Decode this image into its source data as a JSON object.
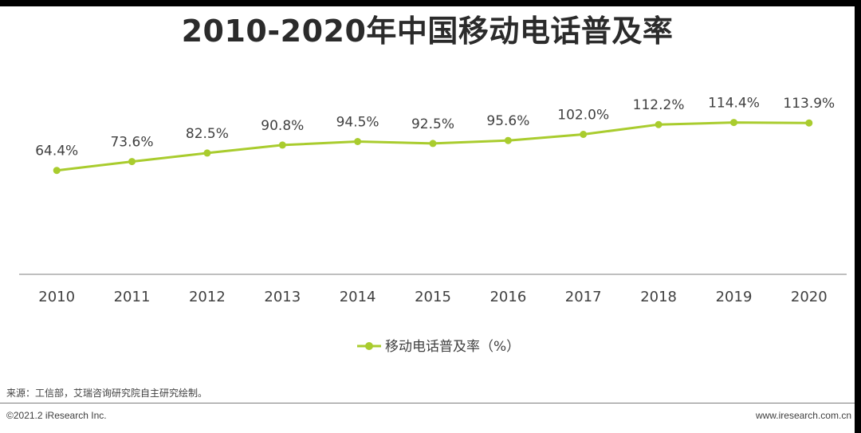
{
  "colors": {
    "series": "#a9cc2e",
    "axis": "#7f7f7f",
    "text": "#404040"
  },
  "chart_data": {
    "type": "line",
    "title": "2010-2020年中国移动电话普及率",
    "categories": [
      "2010",
      "2011",
      "2012",
      "2013",
      "2014",
      "2015",
      "2016",
      "2017",
      "2018",
      "2019",
      "2020"
    ],
    "series": [
      {
        "name": "移动电话普及率（%）",
        "values": [
          64.4,
          73.6,
          82.5,
          90.8,
          94.5,
          92.5,
          95.6,
          102.0,
          112.2,
          114.4,
          113.9
        ]
      }
    ],
    "data_labels": [
      "64.4%",
      "73.6%",
      "82.5%",
      "90.8%",
      "94.5%",
      "92.5%",
      "95.6%",
      "102.0%",
      "112.2%",
      "114.4%",
      "113.9%"
    ],
    "ylim": [
      -44,
      134
    ],
    "grid": false,
    "legend": "bottom-center"
  },
  "footer": {
    "source": "来源：工信部，艾瑞咨询研究院自主研究绘制。",
    "copyright": "©2021.2 iResearch Inc.",
    "website": "www.iresearch.com.cn"
  }
}
